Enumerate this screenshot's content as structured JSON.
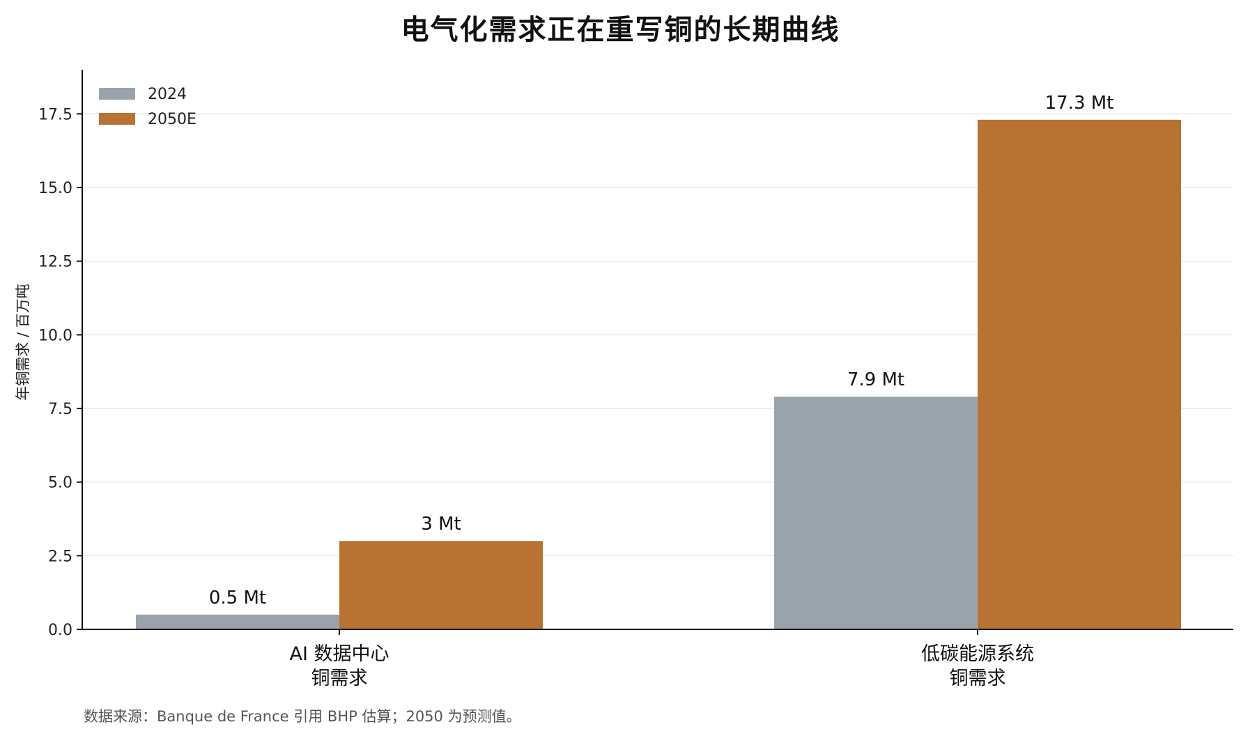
{
  "colors": {
    "series_2024": "#9aa3ab",
    "series_2050": "#b87333",
    "grid": "#e9e9e9",
    "axis": "#111111"
  },
  "chart_data": {
    "type": "bar",
    "title": "电气化需求正在重写铜的长期曲线",
    "ylabel": "年铜需求 / 百万吨",
    "xlabel": "",
    "ylim": [
      0,
      19
    ],
    "yticks": [
      0.0,
      2.5,
      5.0,
      7.5,
      10.0,
      12.5,
      15.0,
      17.5
    ],
    "ytick_labels": [
      "0.0",
      "2.5",
      "5.0",
      "7.5",
      "10.0",
      "12.5",
      "15.0",
      "17.5"
    ],
    "grid": "horizontal",
    "legend_position": "top-left",
    "categories": [
      [
        "AI 数据中心",
        "铜需求"
      ],
      [
        "低碳能源系统",
        "铜需求"
      ]
    ],
    "series": [
      {
        "name": "2024",
        "values": [
          0.5,
          7.9
        ],
        "labels": [
          "0.5 Mt",
          "7.9 Mt"
        ]
      },
      {
        "name": "2050E",
        "values": [
          3.0,
          17.3
        ],
        "labels": [
          "3 Mt",
          "17.3 Mt"
        ]
      }
    ]
  },
  "source_note": "数据来源：Banque de France 引用 BHP 估算；2050 为预测值。"
}
